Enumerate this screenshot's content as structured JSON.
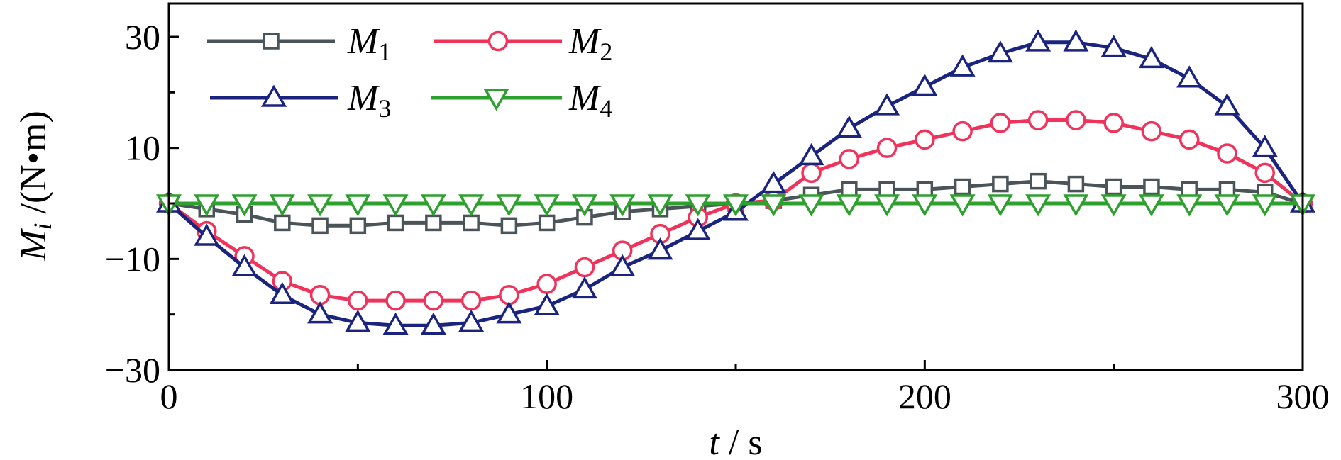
{
  "chart_data": {
    "type": "line",
    "xlabel": {
      "var": "t",
      "unit": "s"
    },
    "ylabel": {
      "var": "M",
      "sub": "i",
      "unit": "(N•m)"
    },
    "xlim": [
      0,
      300
    ],
    "ylim": [
      -30,
      36
    ],
    "x_ticks": [
      0,
      100,
      200,
      300
    ],
    "x_tick_labels": [
      "0",
      "100",
      "200",
      "300"
    ],
    "y_ticks": [
      -30,
      -10,
      10,
      30
    ],
    "y_tick_labels": [
      "−30",
      "−10",
      "10",
      "30"
    ],
    "y_minor_ticks": [
      -20,
      0,
      20
    ],
    "grid": false,
    "legend_position": "top-left",
    "x": [
      0,
      10,
      20,
      30,
      40,
      50,
      60,
      70,
      80,
      90,
      100,
      110,
      120,
      130,
      140,
      150,
      160,
      170,
      180,
      190,
      200,
      210,
      220,
      230,
      240,
      250,
      260,
      270,
      280,
      290,
      300
    ],
    "series": [
      {
        "name": "M",
        "sub": "1",
        "color": "#4a5459",
        "marker": "square",
        "values": [
          0,
          -1,
          -2,
          -3.5,
          -4,
          -4,
          -3.5,
          -3.5,
          -3.5,
          -4,
          -3.5,
          -2.5,
          -1.5,
          -1,
          -0.5,
          0,
          0.5,
          1.5,
          2.5,
          2.5,
          2.5,
          3,
          3.5,
          4,
          3.5,
          3,
          3,
          2.5,
          2.5,
          2,
          0
        ]
      },
      {
        "name": "M",
        "sub": "2",
        "color": "#f0335a",
        "marker": "circle",
        "values": [
          0,
          -5,
          -9.5,
          -14,
          -16.5,
          -17.5,
          -17.5,
          -17.5,
          -17.5,
          -16.5,
          -14.5,
          -11.5,
          -8.5,
          -5.5,
          -2.5,
          0,
          0.5,
          5.5,
          8,
          10,
          11.5,
          13,
          14.5,
          15,
          15,
          14.5,
          13,
          11.5,
          9,
          5.5,
          0
        ]
      },
      {
        "name": "M",
        "sub": "3",
        "color": "#1a237e",
        "marker": "triangle-up",
        "values": [
          0,
          -6,
          -11.5,
          -16.5,
          -20,
          -21.5,
          -22,
          -22,
          -21.5,
          -20,
          -18.5,
          -15.5,
          -11.5,
          -8.5,
          -5,
          -1.5,
          3.5,
          8.5,
          13.5,
          17.5,
          21,
          24.5,
          27,
          29,
          29,
          28,
          26,
          22.5,
          17.5,
          10,
          0
        ]
      },
      {
        "name": "M",
        "sub": "4",
        "color": "#2ea02e",
        "marker": "triangle-down",
        "values": [
          0,
          0,
          0,
          0,
          0,
          0,
          0,
          0,
          0,
          0,
          0,
          0,
          0,
          0,
          0,
          0,
          0,
          0,
          0,
          0,
          0,
          0,
          0,
          0,
          0,
          0,
          0,
          0,
          0,
          0,
          0
        ]
      }
    ]
  }
}
